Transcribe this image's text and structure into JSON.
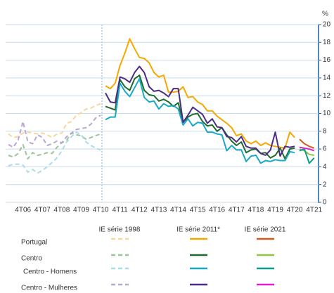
{
  "chart_data": {
    "type": "line",
    "y_unit": "%",
    "categories": [
      null,
      null,
      null,
      "4T06",
      null,
      null,
      null,
      "4T07",
      null,
      null,
      null,
      "4T08",
      null,
      null,
      null,
      "4T09",
      null,
      null,
      null,
      "4T10",
      null,
      null,
      null,
      "4T11",
      null,
      null,
      null,
      "4T12",
      null,
      null,
      null,
      "4T13",
      null,
      null,
      null,
      "4T14",
      null,
      null,
      null,
      "4T15",
      null,
      null,
      null,
      "4T16",
      null,
      null,
      null,
      "4T17",
      null,
      null,
      null,
      "4T18",
      null,
      null,
      null,
      "4T19",
      null,
      null,
      null,
      "4T20",
      null,
      null,
      null,
      "4T21"
    ],
    "ylim": [
      0,
      20
    ],
    "yticks": [
      0,
      2,
      4,
      6,
      8,
      10,
      12,
      14,
      16,
      18,
      20
    ],
    "grid": true,
    "legend_columns": [
      "IE série 1998",
      "IE série 2011*",
      "IE série 2021"
    ],
    "legend_rows": [
      "Portugal",
      "Centro",
      "Centro - Homens",
      "Centro - Mulheres"
    ],
    "series": [
      [
        {
          "color": "#f7d79e",
          "dash": true,
          "values": [
            7.7,
            7.3,
            7.4,
            7.8,
            7.9,
            7.8,
            7.7,
            7.8,
            7.6,
            7.3,
            7.7,
            7.8,
            8.9,
            9.1,
            9.8,
            10.1,
            10.5,
            10.6,
            10.9,
            11.1,
            null,
            null,
            null,
            null,
            null,
            null,
            null,
            null,
            null,
            null,
            null,
            null,
            null,
            null,
            null,
            null,
            null,
            null,
            null,
            null,
            null,
            null,
            null,
            null,
            null,
            null,
            null,
            null,
            null,
            null,
            null,
            null,
            null,
            null,
            null,
            null,
            null,
            null,
            null,
            null,
            null,
            null,
            null,
            null
          ]
        },
        {
          "color": "#9cc59a",
          "dash": true,
          "values": [
            5.3,
            5.1,
            5.5,
            6.5,
            4.9,
            5.6,
            5.3,
            5.4,
            5.6,
            5.5,
            6.2,
            6.7,
            7.0,
            7.8,
            7.6,
            7.5,
            7.1,
            7.3,
            7.5,
            7.7,
            null,
            null,
            null,
            null,
            null,
            null,
            null,
            null,
            null,
            null,
            null,
            null,
            null,
            null,
            null,
            null,
            null,
            null,
            null,
            null,
            null,
            null,
            null,
            null,
            null,
            null,
            null,
            null,
            null,
            null,
            null,
            null,
            null,
            null,
            null,
            null,
            null,
            null,
            null,
            null,
            null,
            null,
            null,
            null
          ]
        },
        {
          "color": "#a9dde9",
          "dash": true,
          "values": [
            4.1,
            4.3,
            4.3,
            4.2,
            3.4,
            3.7,
            3.3,
            3.6,
            4.0,
            4.5,
            5.0,
            5.8,
            6.8,
            7.4,
            7.9,
            7.6,
            6.8,
            6.4,
            6.1,
            5.9,
            null,
            null,
            null,
            null,
            null,
            null,
            null,
            null,
            null,
            null,
            null,
            null,
            null,
            null,
            null,
            null,
            null,
            null,
            null,
            null,
            null,
            null,
            null,
            null,
            null,
            null,
            null,
            null,
            null,
            null,
            null,
            null,
            null,
            null,
            null,
            null,
            null,
            null,
            null,
            null,
            null,
            null,
            null,
            null
          ]
        },
        {
          "color": "#b8a8d4",
          "dash": true,
          "values": [
            6.5,
            6.2,
            7.0,
            9.1,
            6.8,
            6.6,
            7.6,
            7.3,
            6.4,
            6.6,
            6.9,
            6.7,
            7.4,
            7.8,
            8.2,
            8.3,
            8.4,
            8.8,
            9.5,
            9.8,
            null,
            null,
            null,
            null,
            null,
            null,
            null,
            null,
            null,
            null,
            null,
            null,
            null,
            null,
            null,
            null,
            null,
            null,
            null,
            null,
            null,
            null,
            null,
            null,
            null,
            null,
            null,
            null,
            null,
            null,
            null,
            null,
            null,
            null,
            null,
            null,
            null,
            null,
            null,
            null,
            null,
            null,
            null,
            null
          ]
        }
      ],
      [
        {
          "color": "#f5a800",
          "dash": false,
          "values": [
            null,
            null,
            null,
            null,
            null,
            null,
            null,
            null,
            null,
            null,
            null,
            null,
            null,
            null,
            null,
            null,
            null,
            null,
            null,
            null,
            13.1,
            12.8,
            13.4,
            15.4,
            16.8,
            18.4,
            17.3,
            16.3,
            16.2,
            15.7,
            14.6,
            14.1,
            14.3,
            12.4,
            12.4,
            12.5,
            13.0,
            11.8,
            11.9,
            11.3,
            11.0,
            10.3,
            10.3,
            9.7,
            9.3,
            8.9,
            8.4,
            7.5,
            7.7,
            6.9,
            6.6,
            6.9,
            6.4,
            6.7,
            6.4,
            6.3,
            6.2,
            6.1,
            7.9,
            7.3,
            null,
            null,
            null,
            null
          ]
        },
        {
          "color": "#1e6b2a",
          "dash": false,
          "values": [
            null,
            null,
            null,
            null,
            null,
            null,
            null,
            null,
            null,
            null,
            null,
            null,
            null,
            null,
            null,
            null,
            null,
            null,
            null,
            null,
            10.8,
            10.6,
            10.4,
            13.8,
            13.0,
            12.6,
            13.9,
            14.3,
            12.6,
            12.1,
            12.0,
            11.4,
            11.6,
            11.3,
            10.8,
            11.2,
            9.0,
            9.6,
            9.9,
            10.0,
            9.1,
            8.6,
            8.7,
            8.0,
            8.4,
            7.6,
            6.9,
            6.4,
            6.8,
            5.6,
            5.9,
            6.0,
            5.5,
            5.6,
            5.0,
            5.3,
            6.1,
            4.9,
            6.0,
            6.1,
            null,
            null,
            null,
            null
          ]
        },
        {
          "color": "#1aa8c9",
          "dash": false,
          "values": [
            null,
            null,
            null,
            null,
            null,
            null,
            null,
            null,
            null,
            null,
            null,
            null,
            null,
            null,
            null,
            null,
            null,
            null,
            null,
            null,
            9.3,
            9.6,
            9.6,
            13.4,
            12.5,
            11.9,
            12.9,
            13.9,
            11.8,
            11.3,
            11.4,
            10.5,
            11.1,
            10.8,
            10.9,
            10.5,
            8.7,
            9.4,
            8.6,
            9.0,
            8.9,
            7.9,
            7.9,
            7.7,
            7.6,
            5.8,
            6.4,
            5.9,
            5.9,
            4.6,
            5.2,
            5.3,
            4.4,
            4.7,
            4.6,
            4.8,
            4.7,
            4.7,
            5.7,
            5.6,
            null,
            null,
            null,
            null
          ]
        },
        {
          "color": "#4b2d83",
          "dash": false,
          "values": [
            null,
            null,
            null,
            null,
            null,
            null,
            null,
            null,
            null,
            null,
            null,
            null,
            null,
            null,
            null,
            null,
            null,
            null,
            null,
            null,
            12.3,
            11.3,
            11.2,
            14.1,
            13.9,
            13.5,
            14.6,
            15.3,
            14.6,
            13.0,
            12.5,
            12.6,
            12.3,
            11.9,
            12.8,
            12.8,
            9.0,
            9.8,
            10.7,
            10.3,
            9.9,
            8.9,
            9.4,
            8.5,
            8.4,
            7.4,
            7.3,
            6.8,
            7.4,
            6.3,
            6.1,
            6.1,
            5.5,
            5.3,
            5.9,
            7.9,
            5.2,
            6.3,
            6.2,
            6.3,
            null,
            null,
            null,
            null
          ]
        }
      ],
      [
        {
          "color": "#d35a1a",
          "dash": false,
          "values": [
            null,
            null,
            null,
            null,
            null,
            null,
            null,
            null,
            null,
            null,
            null,
            null,
            null,
            null,
            null,
            null,
            null,
            null,
            null,
            null,
            null,
            null,
            null,
            null,
            null,
            null,
            null,
            null,
            null,
            null,
            null,
            null,
            null,
            null,
            null,
            null,
            null,
            null,
            null,
            null,
            null,
            null,
            null,
            null,
            null,
            null,
            null,
            null,
            null,
            null,
            null,
            null,
            null,
            null,
            null,
            null,
            null,
            null,
            null,
            null,
            7.1,
            6.6,
            6.3,
            6.1
          ]
        },
        {
          "color": "#8dc63f",
          "dash": false,
          "values": [
            null,
            null,
            null,
            null,
            null,
            null,
            null,
            null,
            null,
            null,
            null,
            null,
            null,
            null,
            null,
            null,
            null,
            null,
            null,
            null,
            null,
            null,
            null,
            null,
            null,
            null,
            null,
            null,
            null,
            null,
            null,
            null,
            null,
            null,
            null,
            null,
            null,
            null,
            null,
            null,
            null,
            null,
            null,
            null,
            null,
            null,
            null,
            null,
            null,
            null,
            null,
            null,
            null,
            null,
            null,
            null,
            null,
            null,
            null,
            null,
            6.0,
            5.8,
            5.4,
            5.3
          ]
        },
        {
          "color": "#0e9a8c",
          "dash": false,
          "values": [
            null,
            null,
            null,
            null,
            null,
            null,
            null,
            null,
            null,
            null,
            null,
            null,
            null,
            null,
            null,
            null,
            null,
            null,
            null,
            null,
            null,
            null,
            null,
            null,
            null,
            null,
            null,
            null,
            null,
            null,
            null,
            null,
            null,
            null,
            null,
            null,
            null,
            null,
            null,
            null,
            null,
            null,
            null,
            null,
            null,
            null,
            null,
            null,
            null,
            null,
            null,
            null,
            null,
            null,
            null,
            null,
            null,
            null,
            null,
            null,
            5.8,
            6.0,
            4.4,
            5.0
          ]
        },
        {
          "color": "#e020d0",
          "dash": false,
          "values": [
            null,
            null,
            null,
            null,
            null,
            null,
            null,
            null,
            null,
            null,
            null,
            null,
            null,
            null,
            null,
            null,
            null,
            null,
            null,
            null,
            null,
            null,
            null,
            null,
            null,
            null,
            null,
            null,
            null,
            null,
            null,
            null,
            null,
            null,
            null,
            null,
            null,
            null,
            null,
            null,
            null,
            null,
            null,
            null,
            null,
            null,
            null,
            null,
            null,
            null,
            null,
            null,
            null,
            null,
            null,
            null,
            null,
            null,
            null,
            null,
            6.2,
            6.1,
            6.0,
            5.8
          ]
        }
      ]
    ]
  }
}
